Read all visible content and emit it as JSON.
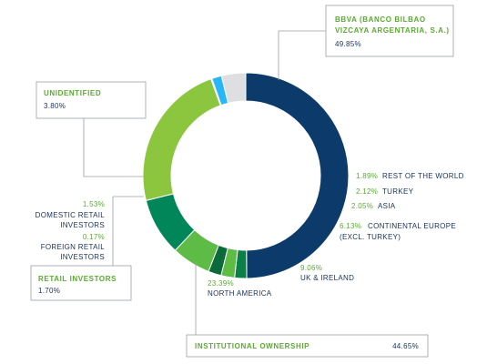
{
  "colors": {
    "navy": "#0b3a6b",
    "green_dark": "#0a7f47",
    "green_mid": "#35a846",
    "green_light": "#5dbb46",
    "green_teal": "#008659",
    "green_lime": "#8cc63f",
    "sky": "#29b6f6",
    "gray": "#dddfe1",
    "label_green": "#5aaa32",
    "label_navy": "#1c3560"
  },
  "chart_data": {
    "type": "pie",
    "donut": true,
    "slices": [
      {
        "label": "BBVA (BANCO BILBAO VIZCAYA ARGENTARIA, S.A.)",
        "value": 49.85,
        "color": "#0b3a6b"
      },
      {
        "label": "REST OF THE WORLD",
        "value": 1.89,
        "color": "#0a7f47"
      },
      {
        "label": "TURKEY",
        "value": 2.12,
        "color": "#5dbb46"
      },
      {
        "label": "ASIA",
        "value": 2.05,
        "color": "#0a6a3c"
      },
      {
        "label": "CONTINENTAL EUROPE (EXCL. TURKEY)",
        "value": 6.13,
        "color": "#5dbb46"
      },
      {
        "label": "UK & IRELAND",
        "value": 9.06,
        "color": "#008659"
      },
      {
        "label": "NORTH AMERICA",
        "value": 23.39,
        "color": "#8cc63f"
      },
      {
        "label": "FOREIGN RETAIL INVESTORS",
        "value": 0.17,
        "color": "#4fc3f7"
      },
      {
        "label": "DOMESTIC RETAIL INVESTORS",
        "value": 1.53,
        "color": "#29b6f6"
      },
      {
        "label": "UNIDENTIFIED",
        "value": 3.8,
        "color": "#dddfe1"
      }
    ]
  },
  "labels": {
    "bbva": {
      "line1": "BBVA (BANCO BILBAO",
      "line2": "VIZCAYA ARGENTARIA, S.A.)",
      "value": "49.85%"
    },
    "unidentified": {
      "title": "UNIDENTIFIED",
      "value": "3.80%"
    },
    "rest_world": {
      "value": "1.89%",
      "name": "REST OF THE WORLD"
    },
    "turkey": {
      "value": "2.12%",
      "name": "TURKEY"
    },
    "asia": {
      "value": "2.05%",
      "name": "ASIA"
    },
    "continental": {
      "value": "6.13%",
      "name_line1": "CONTINENTAL EUROPE",
      "name_line2": "(EXCL. TURKEY)"
    },
    "uk": {
      "value": "9.06%",
      "name": "UK & IRELAND"
    },
    "north_america": {
      "value": "23.39%",
      "name": "NORTH AMERICA"
    },
    "domestic": {
      "value": "1.53%",
      "line1": "DOMESTIC RETAIL",
      "line2": "INVESTORS"
    },
    "foreign": {
      "value": "0.17%",
      "line1": "FOREIGN RETAIL",
      "line2": "INVESTORS"
    },
    "retail": {
      "title": "RETAIL INVESTORS",
      "value": "1.70%"
    },
    "institutional": {
      "title": "INSTITUTIONAL OWNERSHIP",
      "value": "44.65%"
    }
  }
}
